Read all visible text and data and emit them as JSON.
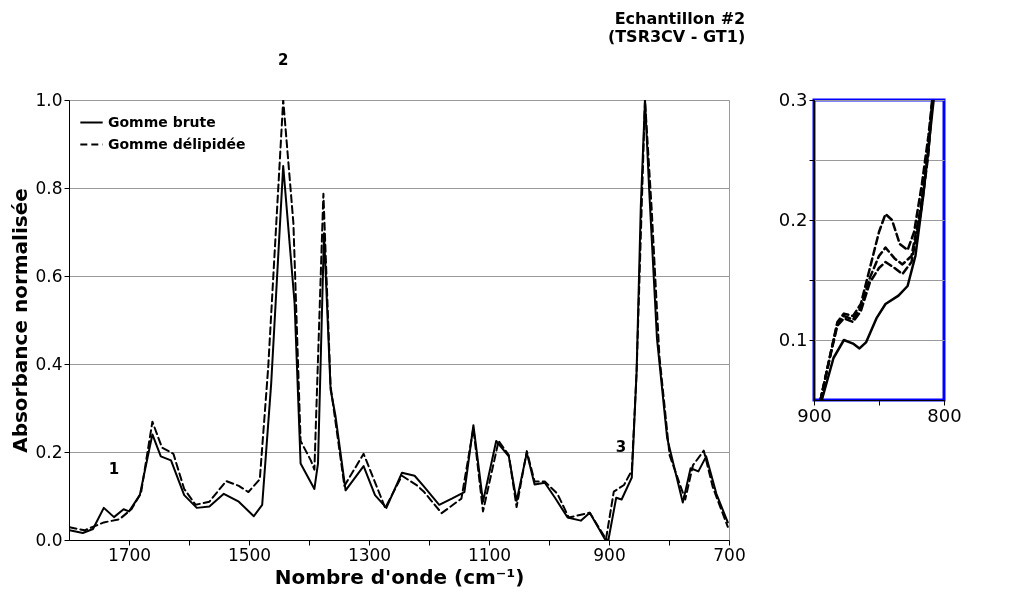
{
  "chart_data": [
    {
      "type": "line",
      "title": "Echantillon #2\n(TSR3CV - GT1)",
      "xlabel": "Nombre d'onde (cm⁻¹)",
      "ylabel": "Absorbance normalisée",
      "xlim": [
        1800,
        700
      ],
      "xticks": [
        1700,
        {
          "value": 1600,
          "label": null
        },
        1500,
        {
          "value": 1400,
          "label": null
        },
        1300,
        {
          "value": 1200,
          "label": null
        },
        1100,
        {
          "value": 1000,
          "label": null
        },
        900,
        {
          "value": 800,
          "label": null
        },
        700
      ],
      "ylim": [
        0,
        1.0
      ],
      "yticks": [
        {
          "value": 0,
          "label": "0.0"
        },
        {
          "value": 0.2,
          "label": "0.2"
        },
        {
          "value": 0.4,
          "label": "0.4"
        },
        {
          "value": 0.6,
          "label": "0.6"
        },
        {
          "value": 0.8,
          "label": "0.8"
        },
        {
          "value": 1.0,
          "label": "1.0"
        }
      ],
      "grid": "y",
      "legend": "top left",
      "series": [
        {
          "name": "Gomme brute",
          "color": "#000000",
          "line_style": "solid",
          "x": [
            1799,
            1777,
            1760,
            1742,
            1725,
            1709,
            1700,
            1682,
            1661,
            1647,
            1630,
            1608,
            1587,
            1566,
            1542,
            1517,
            1492,
            1478,
            1463,
            1443,
            1424,
            1414,
            1391,
            1385,
            1375,
            1364,
            1356,
            1339,
            1309,
            1290,
            1271,
            1245,
            1224,
            1210,
            1183,
            1162,
            1141,
            1126,
            1110,
            1088,
            1067,
            1054,
            1037,
            1024,
            1007,
            990,
            969,
            947,
            932,
            907,
            901,
            888,
            879,
            862,
            854,
            847,
            840,
            833,
            820,
            803,
            777,
            764,
            751,
            738,
            721,
            702
          ],
          "values": [
            0.022,
            0.016,
            0.025,
            0.073,
            0.052,
            0.07,
            0.065,
            0.102,
            0.24,
            0.19,
            0.181,
            0.102,
            0.073,
            0.076,
            0.105,
            0.087,
            0.054,
            0.08,
            0.356,
            0.85,
            0.538,
            0.174,
            0.116,
            0.174,
            0.697,
            0.342,
            0.283,
            0.113,
            0.168,
            0.102,
            0.073,
            0.153,
            0.146,
            0.124,
            0.08,
            0.094,
            0.109,
            0.261,
            0.087,
            0.225,
            0.19,
            0.089,
            0.198,
            0.126,
            0.13,
            0.096,
            0.051,
            0.044,
            0.062,
            0.002,
            0.0,
            0.096,
            0.092,
            0.142,
            0.382,
            0.758,
            1.0,
            0.795,
            0.457,
            0.231,
            0.085,
            0.163,
            0.156,
            0.19,
            0.105,
            0.04
          ]
        },
        {
          "name": "Gomme délipidée",
          "color": "#000000",
          "line_style": "dashed",
          "x": [
            1799,
            1774,
            1742,
            1716,
            1696,
            1680,
            1661,
            1645,
            1626,
            1608,
            1589,
            1566,
            1538,
            1517,
            1501,
            1482,
            1468,
            1443,
            1426,
            1414,
            1397,
            1391,
            1376,
            1364,
            1341,
            1309,
            1273,
            1245,
            1220,
            1208,
            1179,
            1146,
            1126,
            1110,
            1084,
            1067,
            1054,
            1037,
            1024,
            1007,
            986,
            967,
            932,
            905,
            892,
            875,
            862,
            854,
            840,
            829,
            816,
            799,
            773,
            760,
            742,
            727,
            702
          ],
          "values": [
            0.029,
            0.022,
            0.04,
            0.047,
            0.07,
            0.107,
            0.269,
            0.21,
            0.196,
            0.116,
            0.08,
            0.087,
            0.134,
            0.123,
            0.109,
            0.138,
            0.392,
            1.0,
            0.72,
            0.225,
            0.181,
            0.16,
            0.787,
            0.349,
            0.123,
            0.196,
            0.073,
            0.146,
            0.124,
            0.109,
            0.061,
            0.094,
            0.254,
            0.065,
            0.225,
            0.193,
            0.075,
            0.202,
            0.133,
            0.133,
            0.105,
            0.051,
            0.062,
            0.002,
            0.11,
            0.125,
            0.158,
            0.382,
            1.0,
            0.755,
            0.418,
            0.193,
            0.092,
            0.17,
            0.203,
            0.12,
            0.03
          ]
        }
      ],
      "annotations": [
        {
          "text": "1",
          "x": 1725,
          "y": 0.07
        },
        {
          "text": "2",
          "x": 1443,
          "y": 1.0
        },
        {
          "text": "3",
          "x": 880,
          "y": 0.12
        }
      ]
    },
    {
      "type": "line",
      "xlim": [
        900,
        800
      ],
      "xticks": [
        900,
        {
          "value": 850,
          "label": null
        },
        800
      ],
      "ylim": [
        0.05,
        0.3
      ],
      "yticks": [
        {
          "value": 0.1,
          "label": "0.1"
        },
        {
          "value": 0.15,
          "label": null
        },
        {
          "value": 0.2,
          "label": "0.2"
        },
        {
          "value": 0.25,
          "label": null
        },
        {
          "value": 0.3,
          "label": "0.3"
        }
      ],
      "grid": "y",
      "series": [
        {
          "color": "#000000",
          "line_style": "solid",
          "x": [
            894,
            885,
            877,
            870,
            865,
            860,
            852,
            845,
            835,
            828,
            822,
            816,
            811,
            808
          ],
          "values": [
            0.05,
            0.085,
            0.1,
            0.097,
            0.093,
            0.098,
            0.118,
            0.13,
            0.137,
            0.145,
            0.17,
            0.22,
            0.27,
            0.3
          ]
        },
        {
          "color": "#000000",
          "line_style": "dashed",
          "x": [
            895,
            887,
            882,
            877,
            870,
            864,
            857,
            850,
            845,
            840,
            834,
            828,
            823,
            817,
            812,
            809
          ],
          "values": [
            0.05,
            0.09,
            0.115,
            0.122,
            0.12,
            0.13,
            0.16,
            0.19,
            0.205,
            0.2,
            0.18,
            0.175,
            0.19,
            0.23,
            0.27,
            0.3
          ]
        },
        {
          "color": "#000000",
          "line_style": "dashed",
          "x": [
            895,
            887,
            882,
            877,
            870,
            864,
            857,
            850,
            845,
            838,
            832,
            825,
            818,
            812,
            809
          ],
          "values": [
            0.05,
            0.09,
            0.114,
            0.12,
            0.117,
            0.127,
            0.152,
            0.17,
            0.177,
            0.168,
            0.163,
            0.17,
            0.21,
            0.26,
            0.3
          ]
        },
        {
          "color": "#000000",
          "line_style": "dashed",
          "x": [
            895,
            887,
            882,
            877,
            870,
            864,
            857,
            850,
            845,
            838,
            832,
            825,
            818,
            812,
            809
          ],
          "values": [
            0.05,
            0.089,
            0.112,
            0.118,
            0.115,
            0.124,
            0.148,
            0.16,
            0.165,
            0.16,
            0.155,
            0.165,
            0.205,
            0.255,
            0.3
          ]
        }
      ]
    }
  ]
}
